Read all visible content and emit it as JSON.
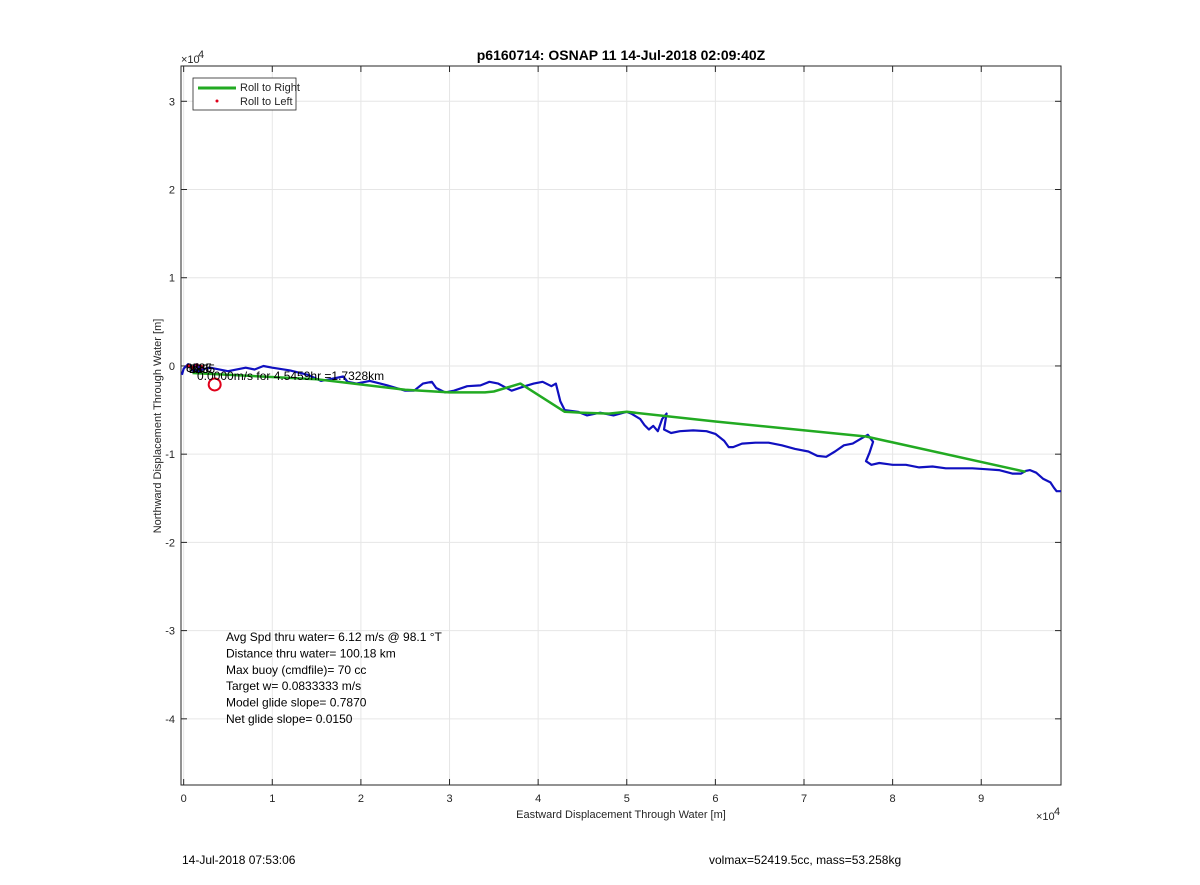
{
  "chart_data": {
    "type": "line",
    "title": "p6160714: OSNAP 11 14-Jul-2018 02:09:40Z",
    "xlabel": "Eastward Displacement Through Water [m]",
    "ylabel": "Northward Displacement Through Water [m]",
    "x_exponent": "×10",
    "x_exponent_power": "4",
    "y_exponent": "×10",
    "y_exponent_power": "4",
    "xlim": [
      -0.03,
      9.9
    ],
    "ylim": [
      -4.75,
      3.4
    ],
    "x_ticks": [
      0,
      1,
      2,
      3,
      4,
      5,
      6,
      7,
      8,
      9
    ],
    "x_tick_labels": [
      "0",
      "1",
      "2",
      "3",
      "4",
      "5",
      "6",
      "7",
      "8",
      "9"
    ],
    "y_ticks": [
      -4,
      -3,
      -2,
      -1,
      0,
      1,
      2,
      3
    ],
    "y_tick_labels": [
      "-4",
      "-3",
      "-2",
      "-1",
      "0",
      "1",
      "2",
      "3"
    ],
    "grid": true,
    "legend_placement": "top-left",
    "colors": {
      "roll_right": "#22aa22",
      "roll_left": "#e0001a",
      "track": "#1010c0",
      "circle": "#e0001a"
    },
    "series": [
      {
        "name": "Roll to Right",
        "color": "#22aa22",
        "x": [
          0.1,
          0.5,
          1.5,
          2.5,
          3.0,
          3.4,
          3.5,
          3.8,
          4.3,
          4.5,
          4.8,
          5.0,
          6.0,
          7.7,
          9.5
        ],
        "y": [
          -0.08,
          -0.1,
          -0.15,
          -0.27,
          -0.3,
          -0.3,
          -0.29,
          -0.2,
          -0.52,
          -0.53,
          -0.54,
          -0.52,
          -0.63,
          -0.8,
          -1.2
        ]
      },
      {
        "name": "Roll to Left",
        "color": "#e0001a",
        "x": [
          0.05,
          0.1,
          0.15,
          0.2
        ],
        "y": [
          0.0,
          -0.02,
          0.01,
          -0.01
        ]
      },
      {
        "name": "",
        "color": "#1010c0",
        "x": [
          -0.02,
          0.0,
          0.05,
          0.1,
          0.15,
          0.2,
          0.15,
          0.1,
          0.2,
          0.3,
          0.5,
          0.7,
          0.8,
          0.9,
          1.0,
          1.2,
          1.4,
          1.55,
          1.65,
          1.8,
          1.85,
          1.95,
          2.1,
          2.3,
          2.5,
          2.6,
          2.7,
          2.8,
          2.85,
          2.95,
          3.05,
          3.2,
          3.35,
          3.45,
          3.55,
          3.7,
          3.85,
          3.95,
          4.05,
          4.15,
          4.2,
          4.25,
          4.3,
          4.45,
          4.55,
          4.7,
          4.85,
          5.0,
          5.05,
          5.15,
          5.2,
          5.25,
          5.3,
          5.35,
          5.4,
          5.45,
          5.42,
          5.5,
          5.6,
          5.75,
          5.9,
          6.0,
          6.1,
          6.15,
          6.2,
          6.3,
          6.45,
          6.6,
          6.75,
          6.9,
          7.05,
          7.15,
          7.25,
          7.35,
          7.45,
          7.55,
          7.65,
          7.72,
          7.78,
          7.74,
          7.7,
          7.76,
          7.85,
          8.0,
          8.15,
          8.3,
          8.45,
          8.6,
          8.75,
          8.9,
          9.05,
          9.2,
          9.35,
          9.45,
          9.5,
          9.55,
          9.62,
          9.7,
          9.78,
          9.82,
          9.85,
          9.9
        ],
        "y": [
          -0.1,
          -0.03,
          0.02,
          -0.02,
          0.02,
          -0.05,
          -0.08,
          -0.05,
          -0.04,
          -0.02,
          -0.06,
          -0.02,
          -0.04,
          0.0,
          -0.02,
          -0.05,
          -0.1,
          -0.17,
          -0.15,
          -0.12,
          -0.18,
          -0.2,
          -0.17,
          -0.22,
          -0.28,
          -0.28,
          -0.2,
          -0.18,
          -0.25,
          -0.3,
          -0.28,
          -0.23,
          -0.22,
          -0.18,
          -0.2,
          -0.28,
          -0.23,
          -0.2,
          -0.18,
          -0.23,
          -0.2,
          -0.4,
          -0.5,
          -0.52,
          -0.56,
          -0.53,
          -0.56,
          -0.52,
          -0.54,
          -0.6,
          -0.67,
          -0.72,
          -0.68,
          -0.74,
          -0.6,
          -0.54,
          -0.72,
          -0.76,
          -0.74,
          -0.73,
          -0.74,
          -0.77,
          -0.85,
          -0.92,
          -0.92,
          -0.88,
          -0.87,
          -0.87,
          -0.9,
          -0.94,
          -0.97,
          -1.02,
          -1.03,
          -0.97,
          -0.9,
          -0.88,
          -0.82,
          -0.78,
          -0.86,
          -0.98,
          -1.08,
          -1.12,
          -1.1,
          -1.12,
          -1.12,
          -1.15,
          -1.14,
          -1.16,
          -1.16,
          -1.16,
          -1.17,
          -1.18,
          -1.22,
          -1.22,
          -1.19,
          -1.18,
          -1.21,
          -1.28,
          -1.32,
          -1.38,
          -1.42,
          -1.42
        ]
      }
    ],
    "circle": {
      "x": 0.35,
      "y": -0.21
    },
    "track_label": "0.0000m/s for 4.5459hr =1.7328km",
    "start_labels": [
      "85",
      "0",
      "235",
      "235",
      "0",
      "235",
      "68",
      "0"
    ],
    "stats": [
      "Avg Spd thru water=  6.12 m/s @  98.1 °T",
      "Distance thru water= 100.18 km",
      "Max buoy (cmdfile)= 70 cc",
      "Target w= 0.0833333 m/s",
      "Model glide slope= 0.7870",
      "Net glide slope= 0.0150"
    ]
  },
  "footer": {
    "timestamp": "14-Jul-2018 07:53:06",
    "volmax": "volmax=52419.5cc, mass=53.258kg"
  }
}
